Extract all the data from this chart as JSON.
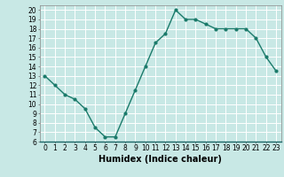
{
  "xlabel": "Humidex (Indice chaleur)",
  "x": [
    0,
    1,
    2,
    3,
    4,
    5,
    6,
    7,
    8,
    9,
    10,
    11,
    12,
    13,
    14,
    15,
    16,
    17,
    18,
    19,
    20,
    21,
    22,
    23
  ],
  "y": [
    13,
    12,
    11,
    10.5,
    9.5,
    7.5,
    6.5,
    6.5,
    9,
    11.5,
    14,
    16.5,
    17.5,
    20,
    19,
    19,
    18.5,
    18,
    18,
    18,
    18,
    17,
    15,
    13.5
  ],
  "line_color": "#1a7a6a",
  "marker": "o",
  "marker_size": 2.0,
  "bg_color": "#c8e8e5",
  "grid_color": "#ffffff",
  "ylim": [
    6,
    20.5
  ],
  "xlim": [
    -0.5,
    23.5
  ],
  "yticks": [
    6,
    7,
    8,
    9,
    10,
    11,
    12,
    13,
    14,
    15,
    16,
    17,
    18,
    19,
    20
  ],
  "xticks": [
    0,
    1,
    2,
    3,
    4,
    5,
    6,
    7,
    8,
    9,
    10,
    11,
    12,
    13,
    14,
    15,
    16,
    17,
    18,
    19,
    20,
    21,
    22,
    23
  ],
  "tick_fontsize": 5.5,
  "label_fontsize": 7.0,
  "line_width": 1.0,
  "xlabel_fontweight": "bold"
}
